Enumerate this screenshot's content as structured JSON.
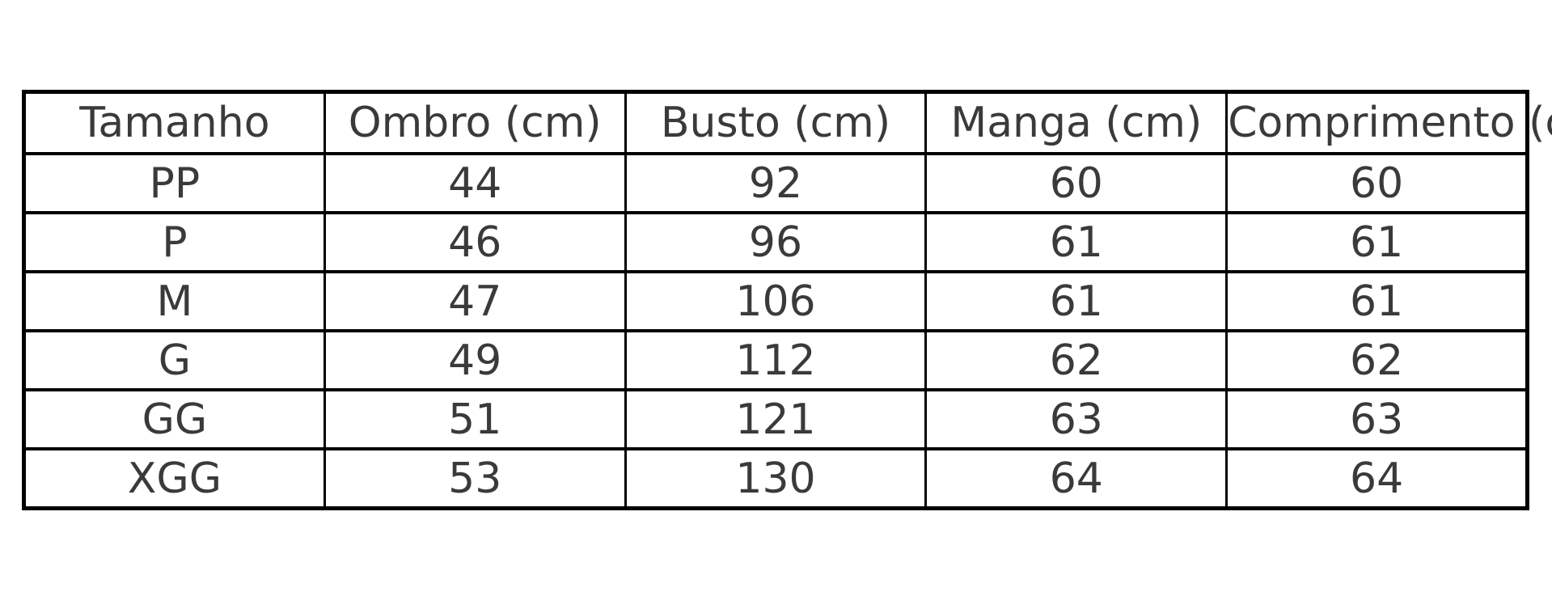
{
  "chart_data": {
    "type": "table",
    "columns": [
      "Tamanho",
      "Ombro (cm)",
      "Busto (cm)",
      "Manga (cm)",
      "Comprimento (cm)"
    ],
    "rows": [
      [
        "PP",
        "44",
        "92",
        "60",
        "60"
      ],
      [
        "P",
        "46",
        "96",
        "61",
        "61"
      ],
      [
        "M",
        "47",
        "106",
        "61",
        "61"
      ],
      [
        "G",
        "49",
        "112",
        "62",
        "62"
      ],
      [
        "GG",
        "51",
        "121",
        "63",
        "63"
      ],
      [
        "XGG",
        "53",
        "130",
        "64",
        "64"
      ]
    ],
    "layout_hints": {
      "grid": "on",
      "last_header_clipped_at_right_edge": true,
      "all_cells_centered": true
    }
  },
  "colors": {
    "background": "#ffffff",
    "border": "#000000",
    "text": "#3a3a3a"
  }
}
